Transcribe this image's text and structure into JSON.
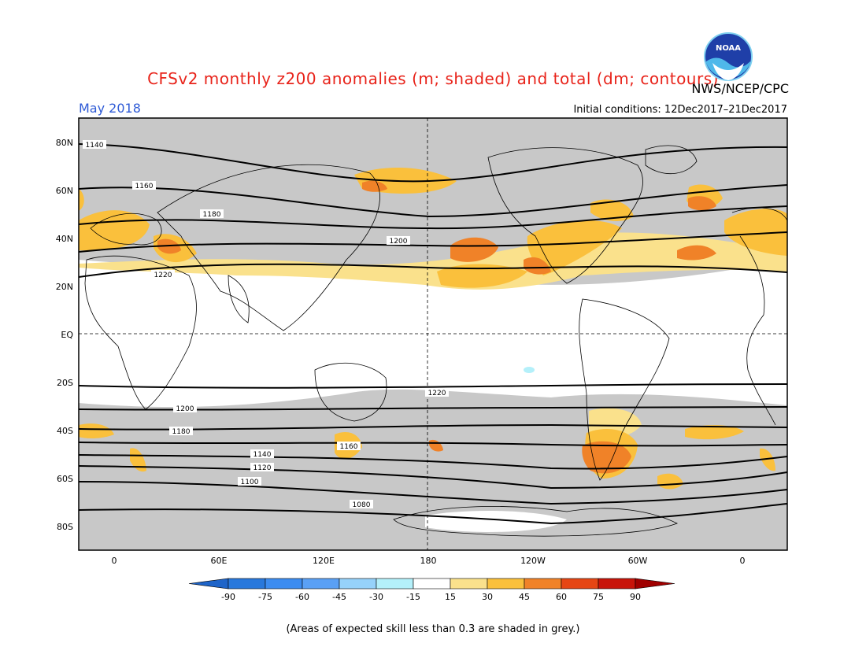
{
  "header": {
    "title": "CFSv2 monthly z200 anomalies (m; shaded) and total (dm; contours)",
    "month": "May 2018",
    "initial_conditions": "Initial conditions: 12Dec2017–21Dec2017",
    "agency": "NWS/NCEP/CPC",
    "logo_text": "NOAA"
  },
  "map": {
    "lat_labels": [
      "80N",
      "60N",
      "40N",
      "20N",
      "EQ",
      "20S",
      "40S",
      "60S",
      "80S"
    ],
    "lon_labels": [
      "0",
      "60E",
      "120E",
      "180",
      "120W",
      "60W",
      "0"
    ],
    "contours": [
      {
        "label": "1220",
        "lat": 22
      },
      {
        "label": "1220",
        "lat": -22
      },
      {
        "label": "1200",
        "lat": -30
      },
      {
        "label": "1180",
        "lat": -40
      },
      {
        "label": "1160",
        "lat": -45
      },
      {
        "label": "1140",
        "lat": -51
      },
      {
        "label": "1120",
        "lat": -56
      },
      {
        "label": "1100",
        "lat": -62
      },
      {
        "label": "1080",
        "lat": -72
      },
      {
        "label": "1140",
        "lat": 77
      },
      {
        "label": "1160",
        "lat": 60
      },
      {
        "label": "1180",
        "lat": 48
      },
      {
        "label": "1200",
        "lat": 35
      }
    ],
    "colors": {
      "skill_mask": "#c8c8c8",
      "land_outline": "#000000"
    }
  },
  "colorbar": {
    "ticks": [
      "-90",
      "-75",
      "-60",
      "-45",
      "-30",
      "-15",
      "15",
      "30",
      "45",
      "60",
      "75",
      "90"
    ],
    "colors": [
      "#1e64c8",
      "#2878dc",
      "#3c8cf0",
      "#5aa0f5",
      "#96d2fa",
      "#b4f0fa",
      "#ffffff",
      "#fae18c",
      "#fac03c",
      "#f08228",
      "#e64614",
      "#c8140a",
      "#a00000"
    ]
  },
  "footer": {
    "note": "(Areas of expected skill less than 0.3 are shaded in grey.)"
  }
}
